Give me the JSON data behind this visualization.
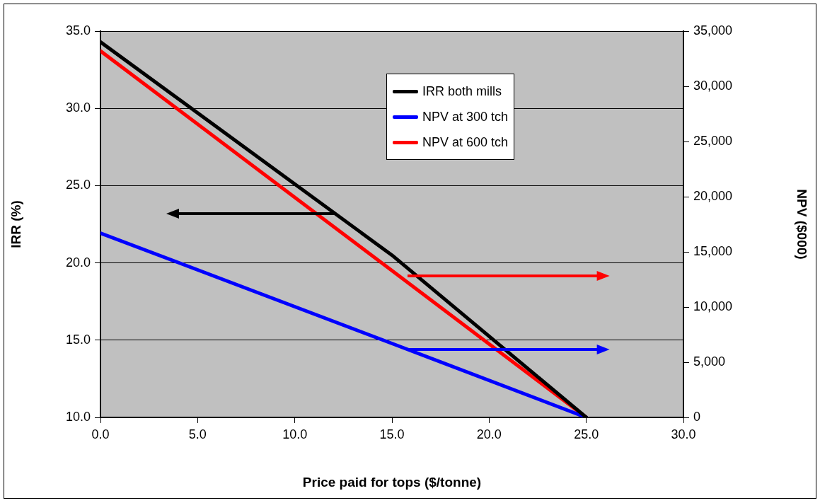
{
  "chart_data": {
    "type": "line",
    "xlabel": "Price paid for tops ($/tonne)",
    "ylabel": "IRR (%)",
    "y2label": "NPV ($000)",
    "xlim": [
      0,
      30
    ],
    "xticks": [
      {
        "value": 0,
        "label": "0.0"
      },
      {
        "value": 5,
        "label": "5.0"
      },
      {
        "value": 10,
        "label": "10.0"
      },
      {
        "value": 15,
        "label": "15.0"
      },
      {
        "value": 20,
        "label": "20.0"
      },
      {
        "value": 25,
        "label": "25.0"
      },
      {
        "value": 30,
        "label": "30.0"
      }
    ],
    "ylim": [
      10,
      35
    ],
    "yticks": [
      {
        "value": 10,
        "label": "10.0"
      },
      {
        "value": 15,
        "label": "15.0"
      },
      {
        "value": 20,
        "label": "20.0"
      },
      {
        "value": 25,
        "label": "25.0"
      },
      {
        "value": 30,
        "label": "30.0"
      },
      {
        "value": 35,
        "label": "35.0"
      }
    ],
    "y2lim": [
      0,
      35000
    ],
    "y2ticks": [
      0,
      {
        "value": 5000,
        "label": "5,000"
      },
      {
        "value": 10000,
        "label": "10,000"
      },
      {
        "value": 15000,
        "label": "15,000"
      },
      {
        "value": 20000,
        "label": "20,000"
      },
      {
        "value": 25000,
        "label": "25,000"
      },
      {
        "value": 30000,
        "label": "30,000"
      },
      {
        "value": 35000,
        "label": "35,000"
      }
    ],
    "grid": "y",
    "legend": "top",
    "marker": "none",
    "line_style": "solid",
    "series": [
      {
        "name": "IRR both mills",
        "color": "#000000",
        "x": [
          0,
          15,
          25
        ],
        "values": [
          34.3,
          20.5,
          10
        ]
      },
      {
        "name": "NPV at 300 tch",
        "color": "#0000ff",
        "axis": "y2",
        "x": [
          0,
          15,
          25
        ],
        "values": [
          16700,
          6700,
          0
        ]
      },
      {
        "name": "NPV at 600 tch",
        "color": "#ff0000",
        "axis": "y2",
        "x": [
          0,
          15,
          25
        ],
        "values": [
          33200,
          13300,
          0
        ]
      }
    ]
  }
}
